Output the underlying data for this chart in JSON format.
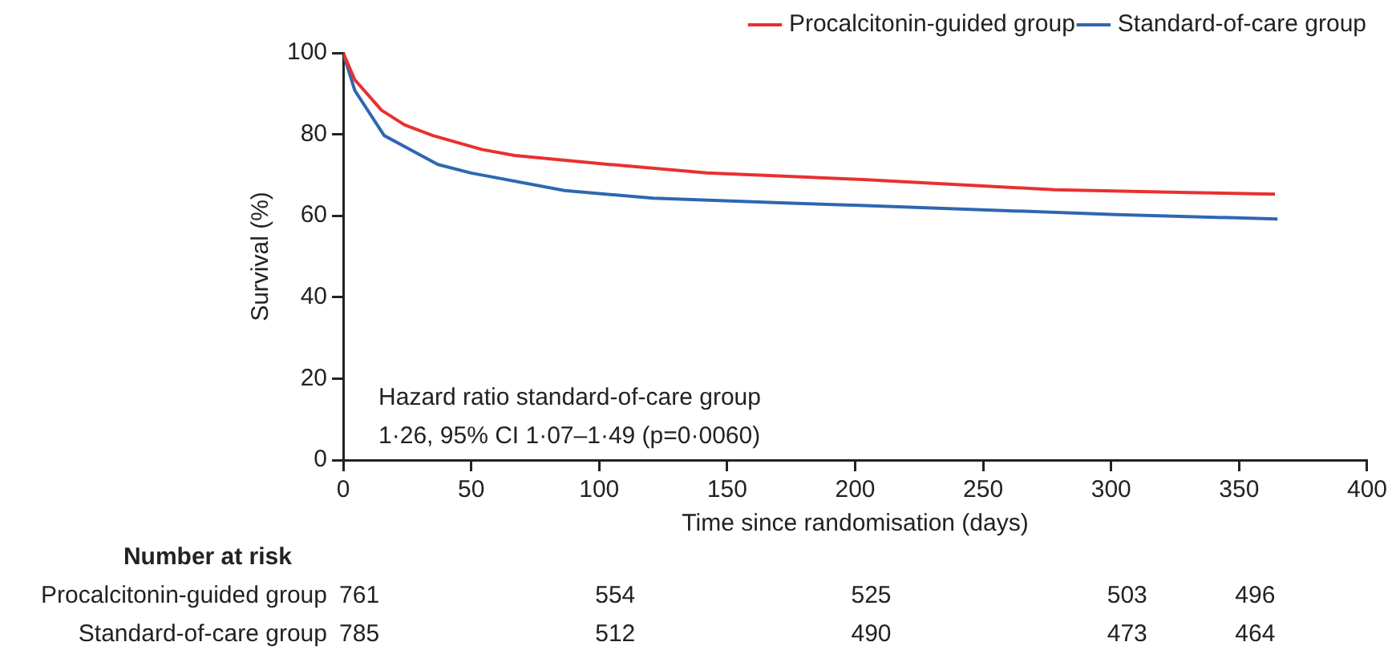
{
  "chart_data": {
    "type": "line",
    "ylabel": "Survival (%)",
    "xlabel": "Time since randomisation (days)",
    "xlim": [
      0,
      400
    ],
    "xticks": [
      0,
      50,
      100,
      150,
      200,
      250,
      300,
      350,
      400
    ],
    "ylim": [
      0,
      100
    ],
    "yticks": [
      0,
      20,
      40,
      60,
      80,
      100
    ],
    "grid": false,
    "legend": "top right",
    "marker": "none",
    "line_style": "solid",
    "series": [
      {
        "name": "Procalcitonin-guided group",
        "color": "#e8312f",
        "x": [
          0,
          4.5,
          15,
          24,
          35,
          54,
          67,
          104,
          142,
          203,
          278,
          330,
          364
        ],
        "values": [
          100,
          93.4,
          85.9,
          82.3,
          79.7,
          76.3,
          74.8,
          72.6,
          70.5,
          68.9,
          66.4,
          65.7,
          65.3
        ]
      },
      {
        "name": "Standard-of-care group",
        "color": "#2e67b1",
        "x": [
          0,
          4.5,
          16,
          37,
          50,
          86.5,
          121,
          175,
          204,
          302,
          365
        ],
        "values": [
          100,
          90.8,
          79.7,
          72.6,
          70.5,
          66.2,
          64.3,
          63.1,
          62.5,
          60.3,
          59.2
        ]
      }
    ],
    "annotations": [
      "Hazard ratio standard-of-care group",
      "1·26, 95% CI 1·07–1·49 (p=0·0060)",
      "Number at risk",
      "Procalcitonin-guided group",
      "761",
      "554",
      "525",
      "503",
      "496",
      "Standard-of-care group",
      "785",
      "512",
      "490",
      "473",
      "464"
    ]
  }
}
